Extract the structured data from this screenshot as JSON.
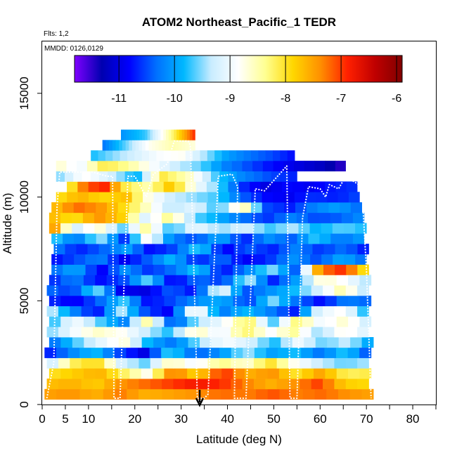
{
  "chart_data": {
    "type": "heatmap",
    "title": "ATOM2 Northeast_Pacific_1 TEDR",
    "notes": [
      "Flts: 1,2",
      "MMDD: 0126,0129"
    ],
    "xlabel": "Latitude (deg N)",
    "ylabel": "Altitude (m)",
    "xlim": [
      0,
      85
    ],
    "ylim": [
      0,
      17500
    ],
    "x_ticks": [
      0,
      5,
      10,
      20,
      30,
      40,
      50,
      60,
      70,
      80
    ],
    "x_minor_ticks": [
      15,
      25,
      35,
      45,
      55,
      65,
      75,
      85
    ],
    "y_ticks": [
      0,
      5000,
      10000,
      15000
    ],
    "colorbar": {
      "range": [
        -11.8,
        -5.9
      ],
      "ticks": [
        -11,
        -10,
        -9,
        -8,
        -7,
        -6
      ],
      "colors": [
        "#8000ff",
        "#0000b0",
        "#0000ff",
        "#0070ff",
        "#00b8ff",
        "#c8ecff",
        "#ffffff",
        "#ffff90",
        "#ffd700",
        "#ff9000",
        "#ff2000",
        "#c00000",
        "#800000"
      ]
    },
    "arrow_marker_latitude": 34,
    "cell_height_m": 500,
    "layers": [
      {
        "alt": 500,
        "x0": 0.5,
        "x1": 71.5,
        "vals": [
          -7.5,
          -7.4,
          -7.6,
          -7.3,
          -7.6,
          -7.5,
          -7.4,
          -7.2,
          -7.3,
          -7.1,
          -7.3,
          -7.2,
          -7.4,
          -7.5
        ]
      },
      {
        "alt": 1000,
        "x0": 1,
        "x1": 70.5,
        "vals": [
          -7.7,
          -7.6,
          -7.8,
          -7.4,
          -7.2,
          -7.0,
          -6.8,
          -6.9,
          -7.3,
          -7.6,
          -7.4,
          -7.0,
          -7.8,
          -7.9
        ]
      },
      {
        "alt": 1500,
        "x0": 1.5,
        "x1": 71,
        "vals": [
          -8.0,
          -7.8,
          -7.6,
          -8.2,
          -8.8,
          -7.2,
          -7.9,
          -6.9,
          -7.6,
          -7.4,
          -8.0,
          -7.5,
          -8.2,
          -8.1
        ]
      },
      {
        "alt": 2000,
        "x0": 1,
        "x1": 70.5,
        "vals": [
          -9.5,
          -8.2,
          -7.9,
          -9.2,
          -9.6,
          -8.5,
          -9.0,
          -8.3,
          -8.7,
          -8.0,
          -8.8,
          -9.3,
          -9.6,
          -9.4
        ]
      },
      {
        "alt": 2500,
        "x0": 0.5,
        "x1": 71,
        "vals": [
          -10.8,
          -10.2,
          -9.8,
          -10.5,
          -11.0,
          -9.6,
          -10.4,
          -10.1,
          -9.4,
          -10.0,
          -9.8,
          -10.3,
          -9.7,
          -10.6
        ]
      },
      {
        "alt": 3000,
        "x0": 1.5,
        "x1": 71.5,
        "vals": [
          -10.4,
          -9.7,
          -9.1,
          -8.7,
          -9.9,
          -10.3,
          -9.5,
          -8.9,
          -9.2,
          -9.8,
          -9.0,
          -9.6,
          -9.3,
          -10.1
        ]
      },
      {
        "alt": 3500,
        "x0": 1,
        "x1": 70.5,
        "vals": [
          -9.6,
          -9.0,
          -8.6,
          -8.8,
          -9.3,
          -9.8,
          -8.5,
          -9.1,
          -8.2,
          -8.9,
          -8.4,
          -9.5,
          -8.7,
          -9.2
        ]
      },
      {
        "alt": 4000,
        "x0": 1.5,
        "x1": 71,
        "vals": [
          -9.9,
          -8.9,
          -9.6,
          -10.2,
          -8.4,
          -10.6,
          -9.4,
          -9.0,
          -8.1,
          -9.7,
          -8.3,
          -9.0,
          -8.6,
          -9.4
        ]
      },
      {
        "alt": 4500,
        "x0": 1,
        "x1": 70.5,
        "vals": [
          -9.2,
          -10.1,
          -10.8,
          -9.4,
          -10.5,
          -10.9,
          -8.6,
          -10.3,
          -9.8,
          -10.2,
          -10.7,
          -9.1,
          -8.8,
          -10.0
        ]
      },
      {
        "alt": 5000,
        "x0": 1.5,
        "x1": 71,
        "vals": [
          -10.6,
          -10.9,
          -10.4,
          -9.7,
          -10.8,
          -10.5,
          -10.1,
          -9.9,
          -10.6,
          -9.5,
          -10.3,
          -10.8,
          -10.2,
          -10.4
        ]
      },
      {
        "alt": 5500,
        "x0": 1,
        "x1": 70.5,
        "vals": [
          -10.3,
          -10.6,
          -9.5,
          -10.9,
          -11.0,
          -10.4,
          -10.8,
          -8.9,
          -10.5,
          -10.1,
          -9.8,
          -9.2,
          -8.4,
          -9.6
        ]
      },
      {
        "alt": 6000,
        "x0": 1.5,
        "x1": 71,
        "vals": [
          -10.7,
          -10.2,
          -10.8,
          -10.5,
          -9.6,
          -10.9,
          -10.3,
          -10.6,
          -9.3,
          -10.7,
          -10.0,
          -8.6,
          -8.9,
          -9.5
        ]
      },
      {
        "alt": 6500,
        "x0": 2,
        "x1": 70.5,
        "vals": [
          -10.4,
          -9.9,
          -10.9,
          -10.1,
          -10.6,
          -10.3,
          -9.7,
          -10.8,
          -10.2,
          -9.5,
          -10.4,
          -7.3,
          -6.9,
          -8.2
        ]
      },
      {
        "alt": 7000,
        "x0": 2,
        "x1": 70,
        "vals": [
          -10.8,
          -10.5,
          -10.2,
          -10.9,
          -10.4,
          -9.8,
          -10.7,
          -10.3,
          -10.9,
          -10.6,
          -10.1,
          -10.5,
          -9.9,
          -10.4
        ]
      },
      {
        "alt": 7500,
        "x0": 2.5,
        "x1": 70.5,
        "vals": [
          -10.2,
          -10.7,
          -10.4,
          -10.0,
          -10.8,
          -10.5,
          -9.6,
          -10.9,
          -10.4,
          -10.7,
          -10.2,
          -10.6,
          -10.3,
          -10.8
        ]
      },
      {
        "alt": 8000,
        "x0": 2,
        "x1": 69.5,
        "vals": [
          -9.6,
          -10.3,
          -9.4,
          -10.6,
          -8.8,
          -10.2,
          -10.5,
          -9.9,
          -10.7,
          -10.1,
          -10.4,
          -9.7,
          -10.3,
          -10.0
        ]
      },
      {
        "alt": 8500,
        "x0": 1.5,
        "x1": 70,
        "vals": [
          -7.0,
          -9.3,
          -8.6,
          -9.6,
          -8.4,
          -9.8,
          -9.0,
          -9.5,
          -9.2,
          -9.7,
          -9.4,
          -9.9,
          -9.6,
          -9.8
        ]
      },
      {
        "alt": 9000,
        "x0": 1.5,
        "x1": 69.5,
        "vals": [
          -7.6,
          -8.0,
          -7.4,
          -7.8,
          -9.2,
          -8.3,
          -9.6,
          -9.9,
          -10.3,
          -10.6,
          -10.2,
          -10.5,
          -10.4,
          -10.1
        ]
      },
      {
        "alt": 9500,
        "x0": 2,
        "x1": 69,
        "vals": [
          -7.8,
          -7.2,
          -7.4,
          -7.9,
          -8.6,
          -9.4,
          -9.1,
          -9.8,
          -8.3,
          -10.5,
          -10.7,
          -10.2,
          -10.0,
          -10.4
        ]
      },
      {
        "alt": 10000,
        "x0": 3,
        "x1": 68.5,
        "vals": [
          -8.0,
          -7.6,
          -7.9,
          -7.7,
          -8.8,
          -9.3,
          -9.5,
          -9.7,
          -10.4,
          -10.8,
          -10.9,
          -10.6,
          -10.7,
          -10.5
        ]
      },
      {
        "alt": 10500,
        "x0": 3,
        "x1": 68,
        "vals": [
          -9.3,
          -7.4,
          -6.8,
          -8.1,
          -8.5,
          -7.7,
          -8.9,
          -9.6,
          -10.6,
          -11.0,
          -10.8,
          -10.9,
          -10.7,
          -10.6
        ]
      },
      {
        "alt": 11000,
        "x0": 3,
        "x1": 55,
        "vals": [
          -9.6,
          -8.8,
          -9.2,
          -9.9,
          -8.1,
          -8.6,
          -9.7,
          -10.2,
          -10.5,
          -10.7
        ]
      },
      {
        "alt": 11500,
        "x0": 3,
        "x1": 65.5,
        "vals": [
          -8.6,
          -9.0,
          -8.1,
          -8.4,
          -8.9,
          -9.3,
          -9.6,
          -10.2,
          -10.5,
          -10.8,
          -11.0,
          -11.2,
          -11.5
        ]
      },
      {
        "alt": 12000,
        "x0": 10.5,
        "x1": 54.5,
        "vals": [
          -9.8,
          -9.5,
          -9.2,
          -8.9,
          -8.8,
          -9.4,
          -10.0,
          -10.3,
          -10.5,
          -10.8
        ]
      },
      {
        "alt": 12500,
        "x0": 13,
        "x1": 33,
        "vals": [
          -10.3,
          -9.6,
          -8.8,
          -8.5,
          -8.7
        ]
      },
      {
        "alt": 13000,
        "x0": 17,
        "x1": 33,
        "vals": [
          -10.1,
          -9.7,
          -8.4,
          -6.9
        ]
      }
    ],
    "flight_track": [
      [
        1,
        300
      ],
      [
        2.5,
        2000
      ],
      [
        3.2,
        9500
      ],
      [
        3.8,
        11200
      ],
      [
        7,
        11200
      ],
      [
        11,
        11200
      ],
      [
        14,
        11000
      ],
      [
        15.2,
        11000
      ],
      [
        15.5,
        300
      ],
      [
        16.8,
        300
      ],
      [
        18.5,
        11000
      ],
      [
        20,
        11000
      ],
      [
        22.5,
        10000
      ],
      [
        24,
        11100
      ],
      [
        27,
        11600
      ],
      [
        28.5,
        12700
      ],
      [
        31.5,
        12700
      ],
      [
        32,
        12500
      ],
      [
        33.5,
        300
      ],
      [
        35,
        300
      ],
      [
        35.8,
        500
      ],
      [
        38,
        11000
      ],
      [
        41,
        11100
      ],
      [
        42.2,
        10500
      ],
      [
        41.5,
        300
      ],
      [
        44,
        300
      ],
      [
        46,
        10400
      ],
      [
        48,
        10300
      ],
      [
        52.8,
        11500
      ],
      [
        53.5,
        300
      ],
      [
        55,
        300
      ],
      [
        56.2,
        9000
      ],
      [
        57.5,
        10500
      ],
      [
        60,
        10400
      ],
      [
        61.2,
        10000
      ],
      [
        62,
        10600
      ],
      [
        64,
        10400
      ],
      [
        65.5,
        11000
      ],
      [
        69,
        10500
      ],
      [
        70,
        6500
      ],
      [
        71,
        300
      ]
    ]
  }
}
